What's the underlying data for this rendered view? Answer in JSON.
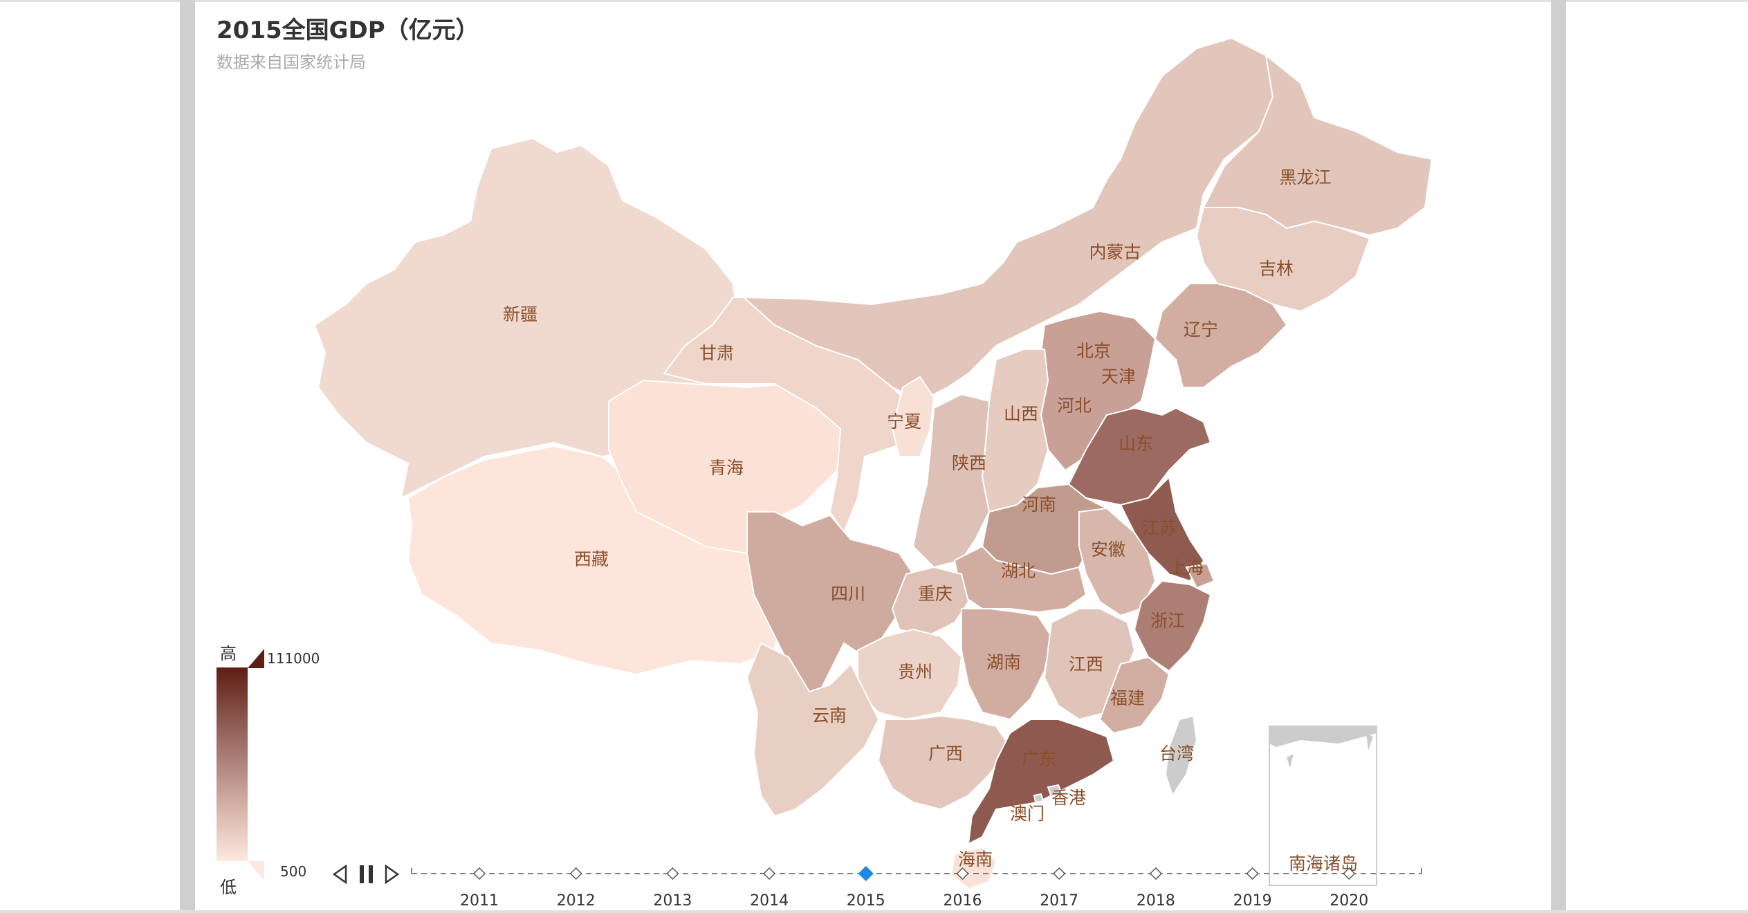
{
  "header": {
    "title": "2015全国GDP（亿元）",
    "subtitle": "数据来自国家统计局"
  },
  "legend": {
    "high_label": "高",
    "low_label": "低",
    "max_value": "111000",
    "min_value": "500",
    "color_high": "#5e1f14",
    "color_low": "#fde8df"
  },
  "map": {
    "regions": [
      {
        "name": "新疆",
        "fill": "#f0d9ce"
      },
      {
        "name": "西藏",
        "fill": "#fde5db"
      },
      {
        "name": "青海",
        "fill": "#fbe1d6"
      },
      {
        "name": "甘肃",
        "fill": "#efd5ca"
      },
      {
        "name": "内蒙古",
        "fill": "#e3c6bb"
      },
      {
        "name": "黑龙江",
        "fill": "#e3c6bb"
      },
      {
        "name": "吉林",
        "fill": "#e8cdc2"
      },
      {
        "name": "辽宁",
        "fill": "#d2aea2"
      },
      {
        "name": "北京",
        "fill": "#d8b8ad"
      },
      {
        "name": "天津",
        "fill": "#d9bab0"
      },
      {
        "name": "河北",
        "fill": "#c8a095"
      },
      {
        "name": "山西",
        "fill": "#e6cbc0"
      },
      {
        "name": "宁夏",
        "fill": "#f7e0d6"
      },
      {
        "name": "陕西",
        "fill": "#deC1b6"
      },
      {
        "name": "山东",
        "fill": "#9c6a60"
      },
      {
        "name": "河南",
        "fill": "#c29b8f"
      },
      {
        "name": "江苏",
        "fill": "#8f5a50"
      },
      {
        "name": "安徽",
        "fill": "#d7b7ab"
      },
      {
        "name": "上海",
        "fill": "#c79f93"
      },
      {
        "name": "湖北",
        "fill": "#d1ada1"
      },
      {
        "name": "浙江",
        "fill": "#ad7f74"
      },
      {
        "name": "四川",
        "fill": "#cfaa9e"
      },
      {
        "name": "重庆",
        "fill": "#dfc3b8"
      },
      {
        "name": "湖南",
        "fill": "#d1ada1"
      },
      {
        "name": "江西",
        "fill": "#e1c4b9"
      },
      {
        "name": "福建",
        "fill": "#d2aea2"
      },
      {
        "name": "贵州",
        "fill": "#ecd3c9"
      },
      {
        "name": "云南",
        "fill": "#e8cfc4"
      },
      {
        "name": "广西",
        "fill": "#e3c7bc"
      },
      {
        "name": "广东",
        "fill": "#8e5a50"
      },
      {
        "name": "香港",
        "fill": "#cccccc"
      },
      {
        "name": "澳门",
        "fill": "#cccccc"
      },
      {
        "name": "台湾",
        "fill": "#cccccc"
      },
      {
        "name": "海南",
        "fill": "#fbe2d8"
      },
      {
        "name": "南海诸岛",
        "fill": "#cccccc"
      }
    ]
  },
  "timeline": {
    "years": [
      "2011",
      "2012",
      "2013",
      "2014",
      "2015",
      "2016",
      "2017",
      "2018",
      "2019",
      "2020"
    ],
    "current": "2015",
    "active_color": "#1e88e5"
  }
}
